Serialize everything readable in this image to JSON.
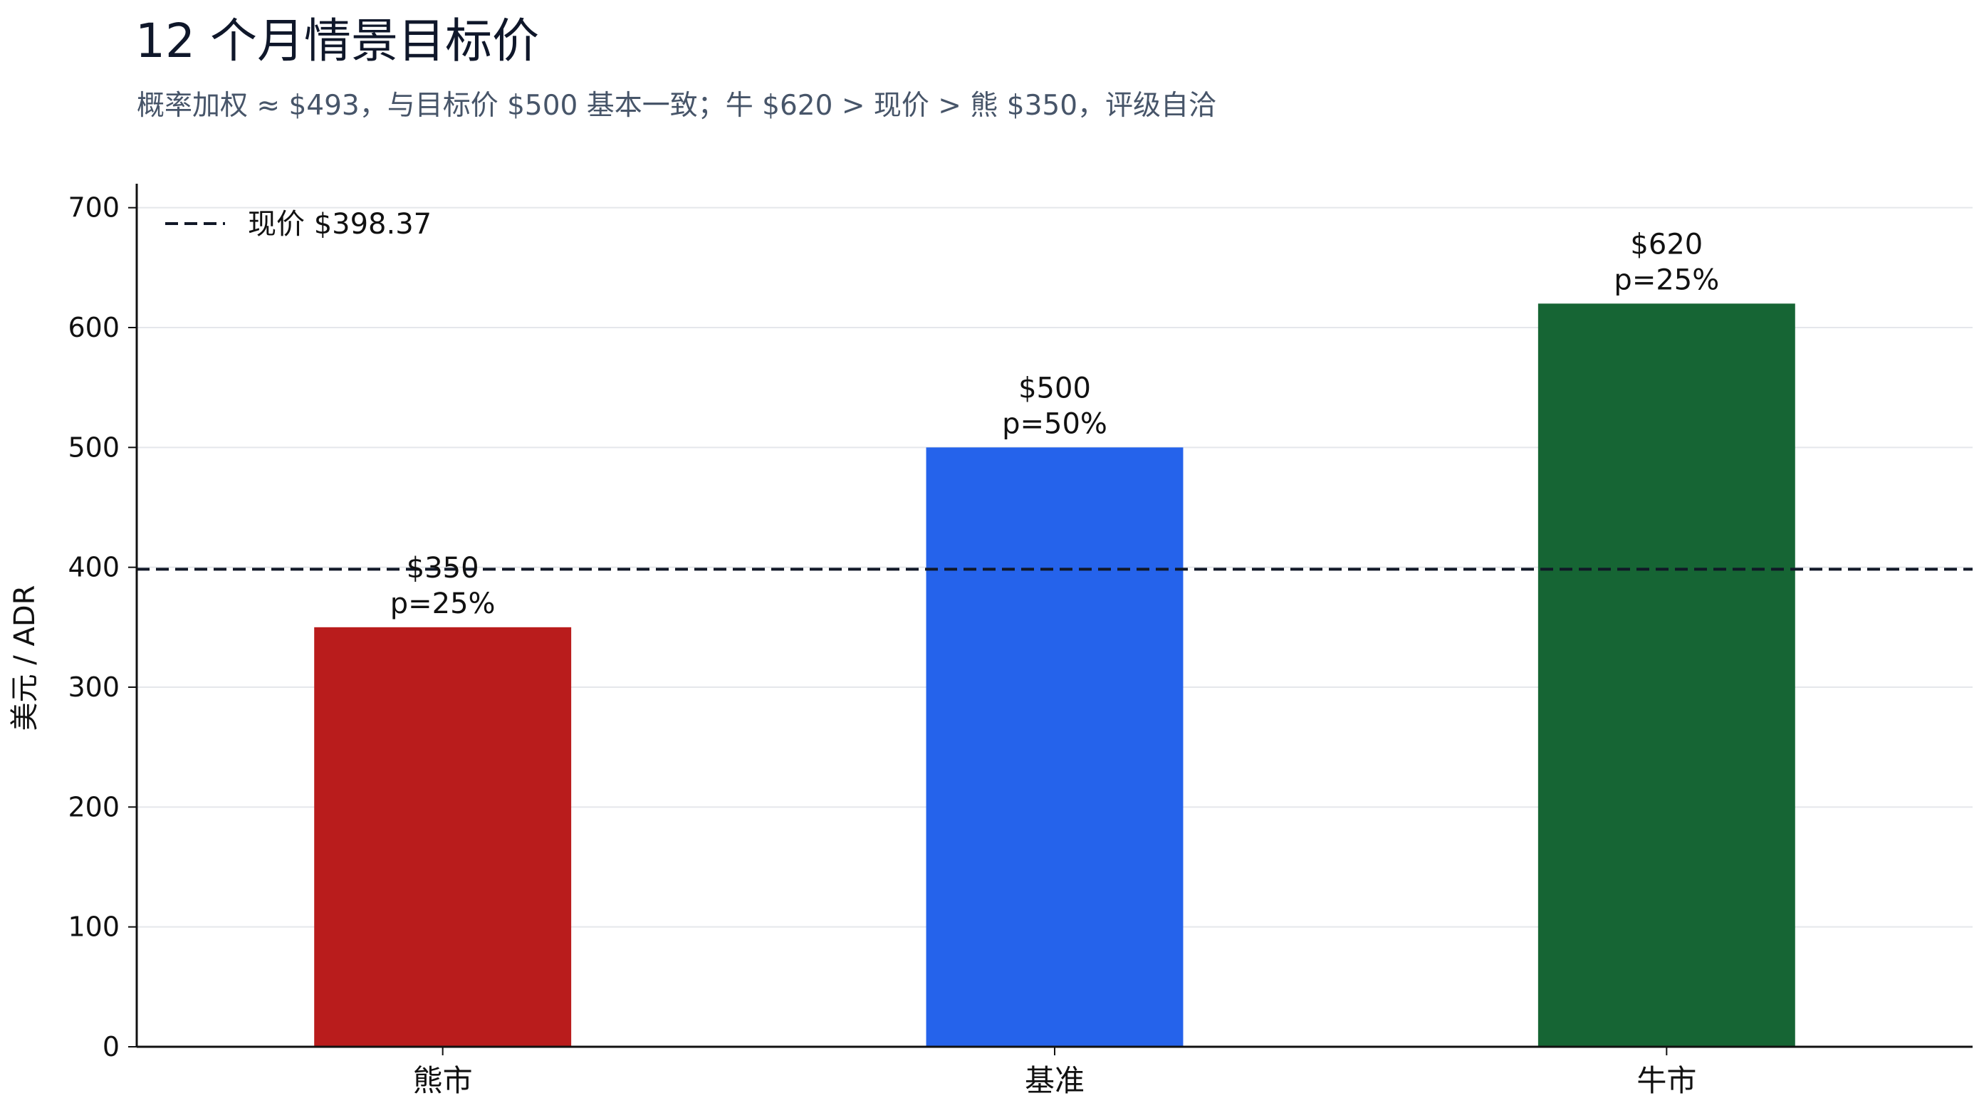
{
  "chart_data": {
    "type": "bar",
    "title": "12 个月情景目标价",
    "subtitle": "概率加权 ≈ $493，与目标价 $500 基本一致；牛 $620 > 现价 > 熊 $350，评级自洽",
    "ylabel": "美元 / ADR",
    "ylim": [
      0,
      720
    ],
    "yticks": [
      0,
      100,
      200,
      300,
      400,
      500,
      600,
      700
    ],
    "grid": "y",
    "legend_placement": "top-left",
    "categories": [
      "熊市",
      "基准",
      "牛市"
    ],
    "values": [
      350,
      500,
      620
    ],
    "colors": [
      "#b91c1c",
      "#2563eb",
      "#166534"
    ],
    "bar_labels": [
      {
        "price": "$350",
        "prob": "p=25%"
      },
      {
        "price": "$500",
        "prob": "p=50%"
      },
      {
        "price": "$620",
        "prob": "p=25%"
      }
    ],
    "reference_line": {
      "value": 398.37,
      "label": "现价 $398.37",
      "color": "#111827",
      "style": "dashed"
    }
  }
}
